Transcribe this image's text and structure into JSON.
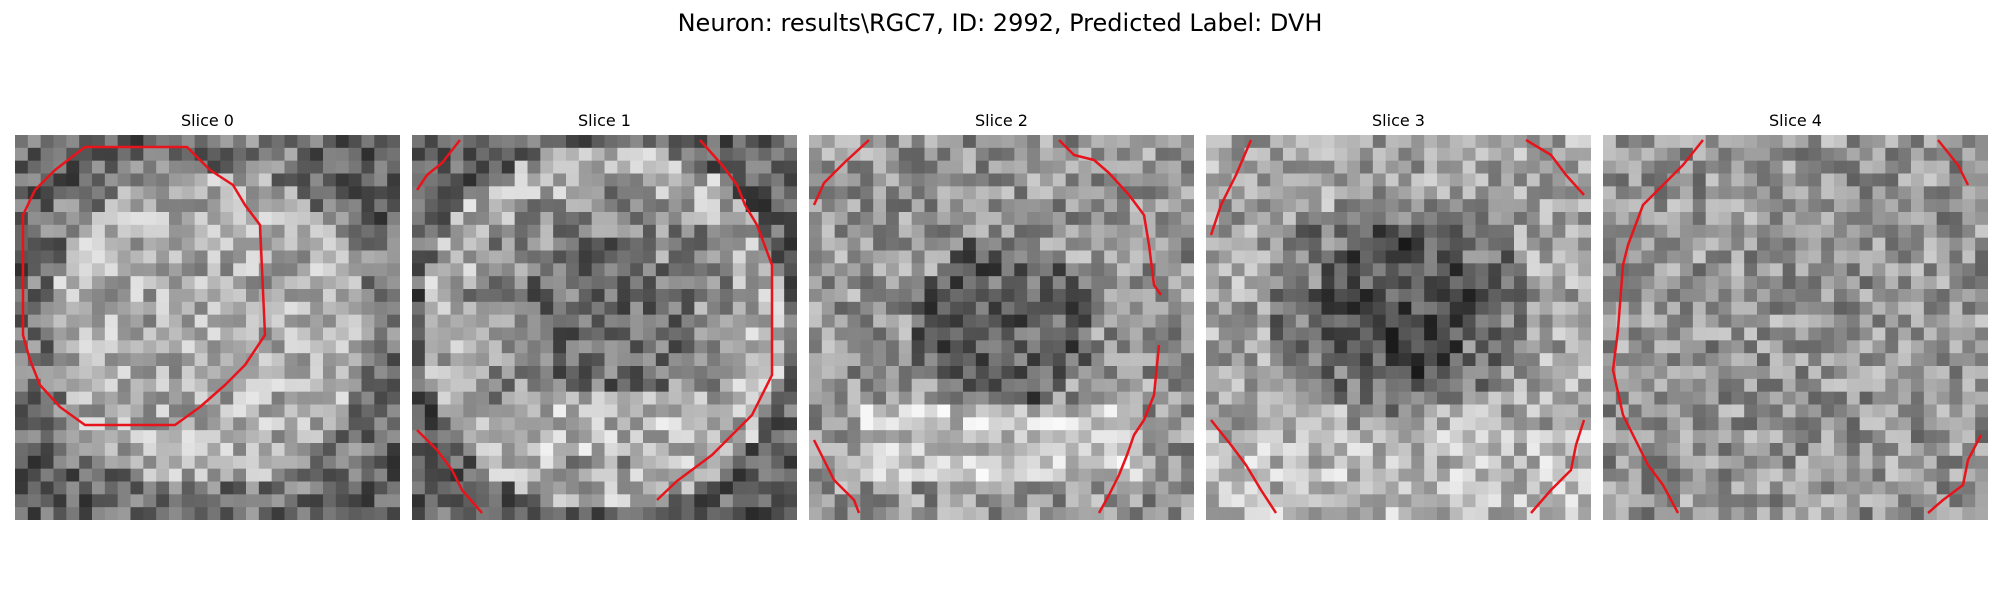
{
  "figure": {
    "title": "Neuron: results\\RGC7, ID: 2992, Predicted Label: DVH"
  },
  "panels": [
    {
      "title": "Slice 0",
      "pattern": "ring"
    },
    {
      "title": "Slice 1",
      "pattern": "ring-dark-center"
    },
    {
      "title": "Slice 2",
      "pattern": "dark-center-bright-bottom"
    },
    {
      "title": "Slice 3",
      "pattern": "dark-center"
    },
    {
      "title": "Slice 4",
      "pattern": "noise"
    }
  ],
  "colors": {
    "contour": "#e8141b",
    "background": "#ffffff"
  }
}
